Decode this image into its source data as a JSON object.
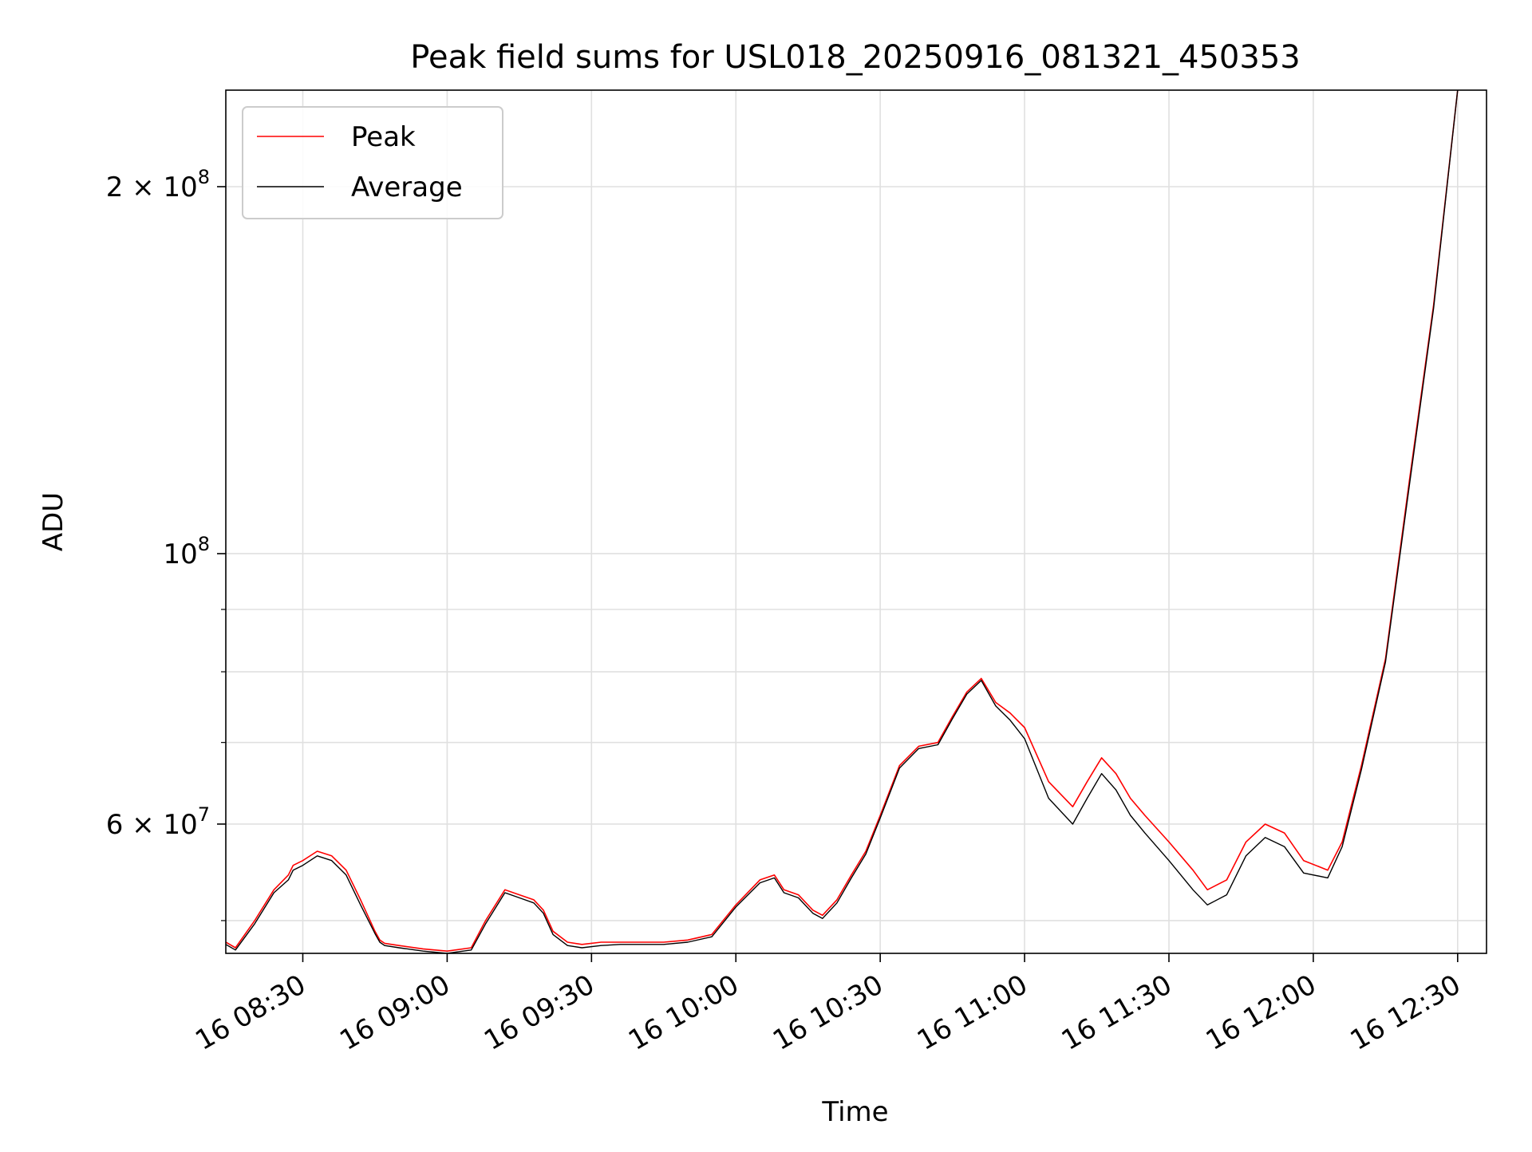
{
  "chart_data": {
    "type": "line",
    "title": "Peak field sums for USL018_20250916_081321_450353",
    "xlabel": "Time",
    "ylabel": "ADU",
    "yscale": "log",
    "ylim": [
      47000000,
      240000000
    ],
    "xlim": [
      "16 08:14",
      "16 12:36"
    ],
    "grid": true,
    "legend_position": "upper-left",
    "x_ticks": [
      "16 08:30",
      "16 09:00",
      "16 09:30",
      "16 10:00",
      "16 10:30",
      "16 11:00",
      "16 11:30",
      "16 12:00",
      "16 12:30"
    ],
    "y_major_ticks": [
      {
        "value": 100000000,
        "base": "10",
        "exp": "8"
      },
      {
        "value": 200000000,
        "coef": "2",
        "base": "10",
        "exp": "8"
      },
      {
        "value": 60000000,
        "coef": "6",
        "base": "10",
        "exp": "7"
      }
    ],
    "y_minor_ticks": [
      50000000,
      70000000,
      80000000,
      90000000
    ],
    "colors": {
      "peak": "#ff0000",
      "average": "#000000"
    },
    "series": [
      {
        "name": "Peak",
        "color": "#ff0000",
        "x": [
          "16 08:14",
          "16 08:16",
          "16 08:20",
          "16 08:24",
          "16 08:27",
          "16 08:28",
          "16 08:30",
          "16 08:33",
          "16 08:36",
          "16 08:39",
          "16 08:42",
          "16 08:45",
          "16 08:46",
          "16 08:47",
          "16 08:50",
          "16 08:55",
          "16 09:00",
          "16 09:05",
          "16 09:08",
          "16 09:12",
          "16 09:15",
          "16 09:18",
          "16 09:20",
          "16 09:22",
          "16 09:25",
          "16 09:28",
          "16 09:32",
          "16 09:36",
          "16 09:40",
          "16 09:45",
          "16 09:50",
          "16 09:55",
          "16 10:00",
          "16 10:05",
          "16 10:08",
          "16 10:10",
          "16 10:13",
          "16 10:16",
          "16 10:18",
          "16 10:21",
          "16 10:24",
          "16 10:27",
          "16 10:30",
          "16 10:34",
          "16 10:38",
          "16 10:42",
          "16 10:45",
          "16 10:48",
          "16 10:51",
          "16 10:54",
          "16 10:57",
          "16 11:00",
          "16 11:05",
          "16 11:10",
          "16 11:13",
          "16 11:16",
          "16 11:19",
          "16 11:22",
          "16 11:25",
          "16 11:30",
          "16 11:35",
          "16 11:38",
          "16 11:42",
          "16 11:46",
          "16 11:50",
          "16 11:54",
          "16 11:58",
          "16 12:03",
          "16 12:06",
          "16 12:10",
          "16 12:15",
          "16 12:20",
          "16 12:25",
          "16 12:30"
        ],
        "y": [
          48000000,
          47500000,
          50000000,
          53000000,
          54500000,
          55500000,
          56000000,
          57000000,
          56500000,
          55000000,
          52000000,
          49000000,
          48200000,
          47900000,
          47700000,
          47400000,
          47200000,
          47500000,
          50000000,
          53000000,
          52500000,
          52000000,
          51000000,
          49000000,
          48000000,
          47800000,
          48000000,
          48000000,
          48000000,
          48000000,
          48200000,
          48700000,
          51500000,
          54000000,
          54500000,
          53000000,
          52500000,
          51000000,
          50500000,
          52000000,
          54500000,
          57000000,
          61000000,
          67000000,
          69500000,
          70000000,
          73500000,
          77000000,
          79000000,
          75500000,
          74000000,
          72000000,
          65000000,
          62000000,
          65000000,
          68000000,
          66000000,
          63000000,
          61000000,
          58000000,
          55000000,
          53000000,
          54000000,
          58000000,
          60000000,
          59000000,
          56000000,
          55000000,
          58000000,
          67000000,
          82000000,
          115000000,
          160000000,
          240000000
        ]
      },
      {
        "name": "Average",
        "color": "#000000",
        "x": [
          "16 08:14",
          "16 08:16",
          "16 08:20",
          "16 08:24",
          "16 08:27",
          "16 08:28",
          "16 08:30",
          "16 08:33",
          "16 08:36",
          "16 08:39",
          "16 08:42",
          "16 08:45",
          "16 08:46",
          "16 08:47",
          "16 08:50",
          "16 08:55",
          "16 09:00",
          "16 09:05",
          "16 09:08",
          "16 09:12",
          "16 09:15",
          "16 09:18",
          "16 09:20",
          "16 09:22",
          "16 09:25",
          "16 09:28",
          "16 09:32",
          "16 09:36",
          "16 09:40",
          "16 09:45",
          "16 09:50",
          "16 09:55",
          "16 10:00",
          "16 10:05",
          "16 10:08",
          "16 10:10",
          "16 10:13",
          "16 10:16",
          "16 10:18",
          "16 10:21",
          "16 10:24",
          "16 10:27",
          "16 10:30",
          "16 10:34",
          "16 10:38",
          "16 10:42",
          "16 10:45",
          "16 10:48",
          "16 10:51",
          "16 10:54",
          "16 10:57",
          "16 11:00",
          "16 11:05",
          "16 11:10",
          "16 11:13",
          "16 11:16",
          "16 11:19",
          "16 11:22",
          "16 11:25",
          "16 11:30",
          "16 11:35",
          "16 11:38",
          "16 11:42",
          "16 11:46",
          "16 11:50",
          "16 11:54",
          "16 11:58",
          "16 12:03",
          "16 12:06",
          "16 12:10",
          "16 12:15",
          "16 12:20",
          "16 12:25",
          "16 12:30"
        ],
        "y": [
          47800000,
          47300000,
          49700000,
          52700000,
          54000000,
          55000000,
          55500000,
          56500000,
          56000000,
          54500000,
          51500000,
          48800000,
          48000000,
          47700000,
          47500000,
          47200000,
          47000000,
          47300000,
          49700000,
          52700000,
          52200000,
          51700000,
          50700000,
          48700000,
          47700000,
          47500000,
          47700000,
          47800000,
          47800000,
          47800000,
          48000000,
          48500000,
          51300000,
          53700000,
          54200000,
          52700000,
          52200000,
          50700000,
          50200000,
          51700000,
          54200000,
          56700000,
          60700000,
          66700000,
          69200000,
          69700000,
          73200000,
          76700000,
          78700000,
          75000000,
          73000000,
          70500000,
          63000000,
          60000000,
          63000000,
          66000000,
          64000000,
          61000000,
          59000000,
          56000000,
          53000000,
          51500000,
          52500000,
          56500000,
          58500000,
          57500000,
          54700000,
          54200000,
          57500000,
          66500000,
          81500000,
          114000000,
          159000000,
          240000000
        ]
      }
    ]
  }
}
